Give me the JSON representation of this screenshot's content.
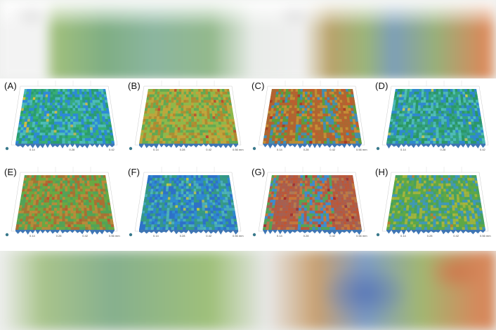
{
  "figure": {
    "panels": [
      {
        "label": "(A)",
        "palette": [
          "#2e8ad6",
          "#38b26a",
          "#4fc1b4",
          "#2aa060"
        ],
        "accent": "#d6c23a",
        "ticks": [
          "0.14",
          "0.28",
          "0.42"
        ]
      },
      {
        "label": "(B)",
        "palette": [
          "#8fb84a",
          "#c7a23a",
          "#5aa655",
          "#b4842e"
        ],
        "accent": "#c5402d",
        "ticks": [
          "0.14",
          "0.28",
          "0.42",
          "0.56 mm"
        ]
      },
      {
        "label": "(C)",
        "palette": [
          "#5c9d3c",
          "#c15a2f",
          "#3f8bc4",
          "#d08a34"
        ],
        "accent": "#b82d21",
        "ticks": [
          "0.14",
          "0.28",
          "0.42",
          "0.56 mm"
        ]
      },
      {
        "label": "(D)",
        "palette": [
          "#2f89cf",
          "#35a872",
          "#52c2b1",
          "#2b9a57"
        ],
        "accent": "#cfd048",
        "ticks": [
          "0.14",
          "0.28",
          "0.42"
        ]
      },
      {
        "label": "(E)",
        "palette": [
          "#6aa843",
          "#c3873a",
          "#4fa15c",
          "#b06a32"
        ],
        "accent": "#c74b2f",
        "ticks": [
          "0.14",
          "0.28",
          "0.42",
          "0.56 mm"
        ]
      },
      {
        "label": "(F)",
        "palette": [
          "#2e72c8",
          "#37a07a",
          "#4fb8b6",
          "#2f8fd0"
        ],
        "accent": "#b9c945",
        "ticks": [
          "0.14",
          "0.28",
          "0.42",
          "0.56 mm"
        ]
      },
      {
        "label": "(G)",
        "palette": [
          "#3f8ccc",
          "#c3542f",
          "#58a644",
          "#d0752f"
        ],
        "accent": "#b3271c",
        "ticks": [
          "0.14",
          "0.28",
          "0.42",
          "0.56 mm"
        ]
      },
      {
        "label": "(H)",
        "palette": [
          "#5ea847",
          "#3c96c6",
          "#a9b53c",
          "#43a066"
        ],
        "accent": "#c9772f",
        "ticks": [
          "0.14",
          "0.28",
          "0.42",
          "0.56 mm"
        ]
      }
    ]
  }
}
